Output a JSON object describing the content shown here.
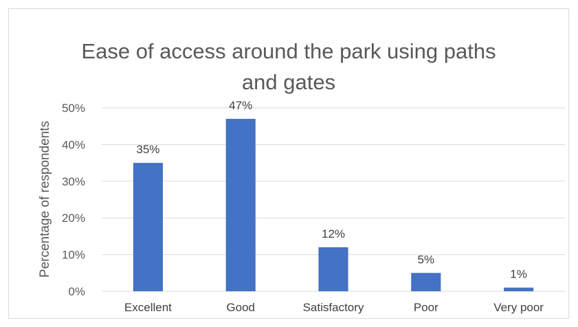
{
  "chart_data": {
    "type": "bar",
    "title_lines": [
      "Ease of access around the park using paths",
      "and gates"
    ],
    "xlabel": "",
    "ylabel": "Percentage of respondents",
    "categories": [
      "Excellent",
      "Good",
      "Satisfactory",
      "Poor",
      "Very poor"
    ],
    "values": [
      35,
      47,
      12,
      5,
      1
    ],
    "data_labels": [
      "35%",
      "47%",
      "12%",
      "5%",
      "1%"
    ],
    "ylim": [
      0,
      50
    ],
    "yticks": [
      0,
      10,
      20,
      30,
      40,
      50
    ],
    "ytick_labels": [
      "0%",
      "10%",
      "20%",
      "30%",
      "40%",
      "50%"
    ],
    "bar_color": "#4472C4",
    "grid": true,
    "legend": "none"
  }
}
